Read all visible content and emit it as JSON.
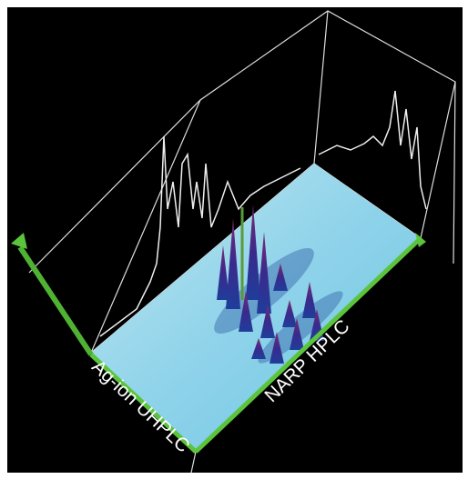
{
  "labels": {
    "first_dimension": "Ag-ion UHPLC",
    "second_dimension": "NARP HPLC"
  }
}
